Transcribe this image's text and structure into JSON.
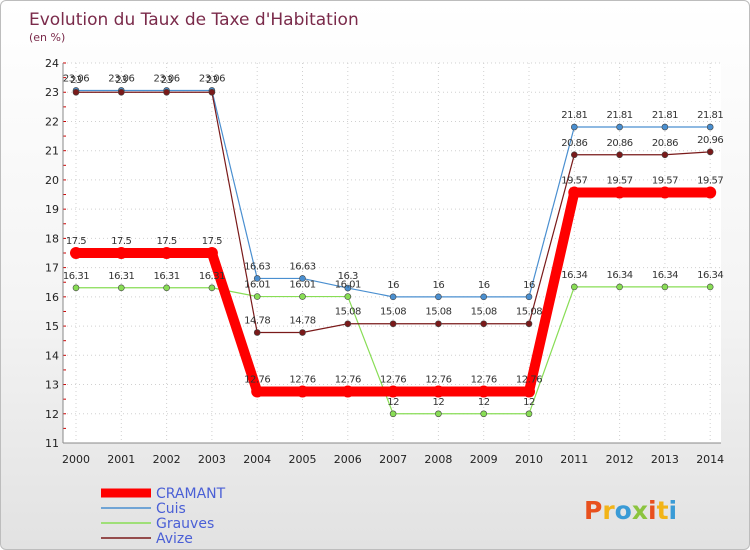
{
  "chart_data": {
    "type": "line",
    "title": "Evolution du Taux de Taxe d'Habitation",
    "subtitle": "(en %)",
    "categories": [
      "2000",
      "2001",
      "2002",
      "2003",
      "2004",
      "2005",
      "2006",
      "2007",
      "2008",
      "2009",
      "2010",
      "2011",
      "2012",
      "2013",
      "2014"
    ],
    "ylim": [
      11,
      24
    ],
    "yticks": [
      11,
      12,
      13,
      14,
      15,
      16,
      17,
      18,
      19,
      20,
      21,
      22,
      23,
      24
    ],
    "grid": true,
    "legend_position": "bottom-left",
    "series": [
      {
        "name": "CRAMANT",
        "color": "#ff0000",
        "values": [
          17.5,
          17.5,
          17.5,
          17.5,
          12.76,
          12.76,
          12.76,
          12.76,
          12.76,
          12.76,
          12.76,
          19.57,
          19.57,
          19.57,
          19.57
        ],
        "labels": [
          "17.5",
          "17.5",
          "17.5",
          "17.5",
          "12.76",
          "12.76",
          "12.76",
          "12.76",
          "12.76",
          "12.76",
          "12.76",
          "19.57",
          "19.57",
          "19.57",
          "19.57"
        ]
      },
      {
        "name": "Cuis",
        "color": "#4a8fd0",
        "values": [
          23.06,
          23.06,
          23.06,
          23.06,
          16.63,
          16.63,
          16.3,
          16,
          16,
          16,
          16,
          21.81,
          21.81,
          21.81,
          21.81
        ],
        "labels": [
          "23.06",
          "23.06",
          "23.06",
          "23.06",
          "16.63",
          "16.63",
          "16.3",
          "16",
          "16",
          "16",
          "16",
          "21.81",
          "21.81",
          "21.81",
          "21.81"
        ]
      },
      {
        "name": "Grauves",
        "color": "#88dd55",
        "values": [
          16.31,
          16.31,
          16.31,
          16.31,
          16.01,
          16.01,
          16.01,
          12,
          12,
          12,
          12,
          16.34,
          16.34,
          16.34,
          16.34
        ],
        "labels": [
          "16.31",
          "16.31",
          "16.31",
          "16.31",
          "16.01",
          "16.01",
          "16.01",
          "12",
          "12",
          "12",
          "12",
          "16.34",
          "16.34",
          "16.34",
          "16.34"
        ]
      },
      {
        "name": "Avize",
        "color": "#7a1a1a",
        "values": [
          23,
          23,
          23,
          23,
          14.78,
          14.78,
          15.08,
          15.08,
          15.08,
          15.08,
          15.08,
          20.86,
          20.86,
          20.86,
          20.96
        ],
        "labels": [
          "23",
          "23",
          "23",
          "23",
          "14.78",
          "14.78",
          "15.08",
          "15.08",
          "15.08",
          "15.08",
          "15.08",
          "20.86",
          "20.86",
          "20.86",
          "20.96"
        ]
      }
    ]
  },
  "logo": {
    "text": "Proxiti",
    "colors": [
      "#e8501e",
      "#f2b418",
      "#3a9bd6",
      "#8bc43f"
    ]
  }
}
